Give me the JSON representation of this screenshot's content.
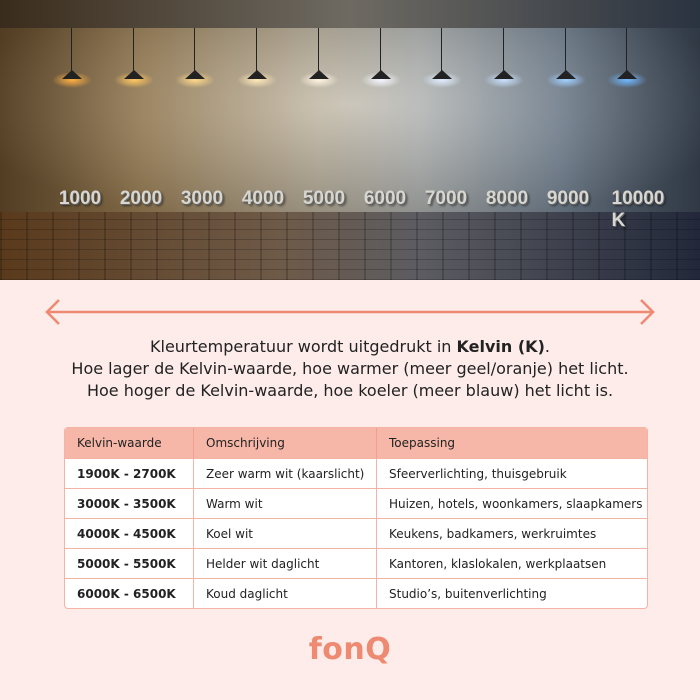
{
  "photo": {
    "scale_labels": [
      "1000",
      "2000",
      "3000",
      "4000",
      "5000",
      "6000",
      "7000",
      "8000",
      "9000",
      "10000 K"
    ],
    "lamp_colors": [
      "#ffb040",
      "#ffc860",
      "#ffd88a",
      "#ffe8b8",
      "#fff4e0",
      "#f4f6ff",
      "#e0ecff",
      "#c8e0ff",
      "#9fd0ff",
      "#70b8ff"
    ]
  },
  "intro": {
    "line1_prefix": "Kleurtemperatuur wordt uitgedrukt in ",
    "line1_bold": "Kelvin (K)",
    "line1_suffix": ".",
    "line2": "Hoe lager de Kelvin-waarde, hoe warmer (meer geel/oranje) het licht.",
    "line3": "Hoe hoger de Kelvin-waarde, hoe koeler (meer blauw) het licht is."
  },
  "table": {
    "headers": [
      "Kelvin-waarde",
      "Omschrijving",
      "Toepassing"
    ],
    "rows": [
      [
        "1900K - 2700K",
        "Zeer warm wit (kaarslicht)",
        "Sfeerverlichting, thuisgebruik"
      ],
      [
        "3000K - 3500K",
        "Warm wit",
        "Huizen, hotels, woonkamers, slaapkamers"
      ],
      [
        "4000K - 4500K",
        "Koel wit",
        "Keukens, badkamers, werkruimtes"
      ],
      [
        "5000K - 5500K",
        "Helder wit daglicht",
        "Kantoren, klaslokalen, werkplaatsen"
      ],
      [
        "6000K - 6500K",
        "Koud daglicht",
        "Studio’s, buitenverlichting"
      ]
    ]
  },
  "logo": "fonQ",
  "colors": {
    "accent": "#ef8a72",
    "background": "#fdecea",
    "table_header": "#f7b7a8"
  }
}
